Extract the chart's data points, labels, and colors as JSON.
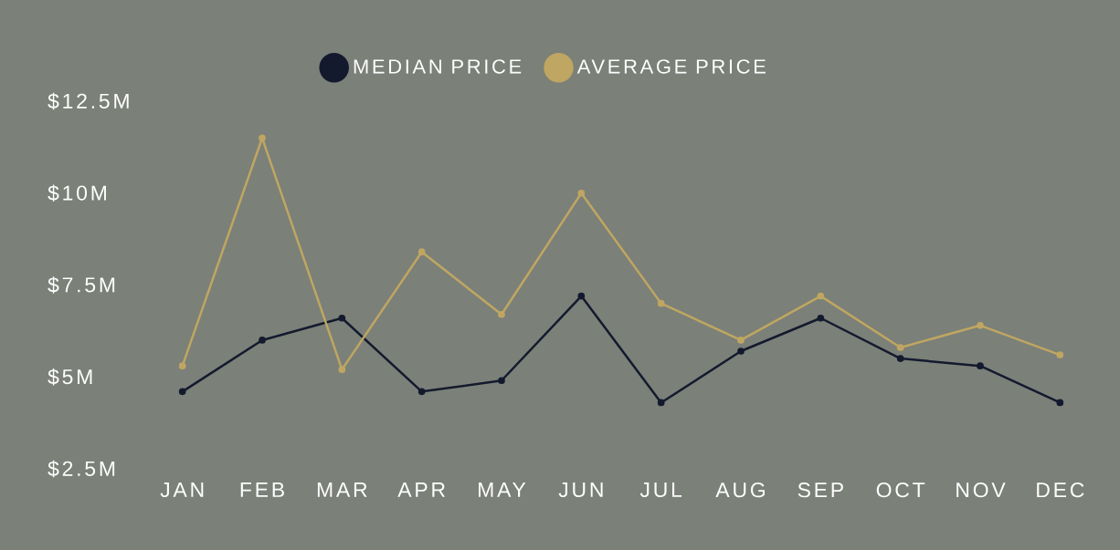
{
  "chart_data": {
    "type": "line",
    "categories": [
      "JAN",
      "FEB",
      "MAR",
      "APR",
      "MAY",
      "JUN",
      "JUL",
      "AUG",
      "SEP",
      "OCT",
      "NOV",
      "DEC"
    ],
    "series": [
      {
        "name": "MEDIAN PRICE",
        "color": "#141a2e",
        "values": [
          4.6,
          6.0,
          6.6,
          4.6,
          4.9,
          7.2,
          4.3,
          5.7,
          6.6,
          5.5,
          5.3,
          4.3
        ]
      },
      {
        "name": "AVERAGE PRICE",
        "color": "#bfa662",
        "values": [
          5.3,
          11.5,
          5.2,
          8.4,
          6.7,
          10.0,
          7.0,
          6.0,
          7.2,
          5.8,
          6.4,
          5.6
        ]
      }
    ],
    "ylim": [
      2.5,
      12.5
    ],
    "yticks": [
      {
        "value": 2.5,
        "label": "$2.5M"
      },
      {
        "value": 5,
        "label": "$5M"
      },
      {
        "value": 7.5,
        "label": "$7.5M"
      },
      {
        "value": 10,
        "label": "$10M"
      },
      {
        "value": 12.5,
        "label": "$12.5M"
      }
    ],
    "legend": "top",
    "marker": "circle",
    "line_style": "solid"
  }
}
